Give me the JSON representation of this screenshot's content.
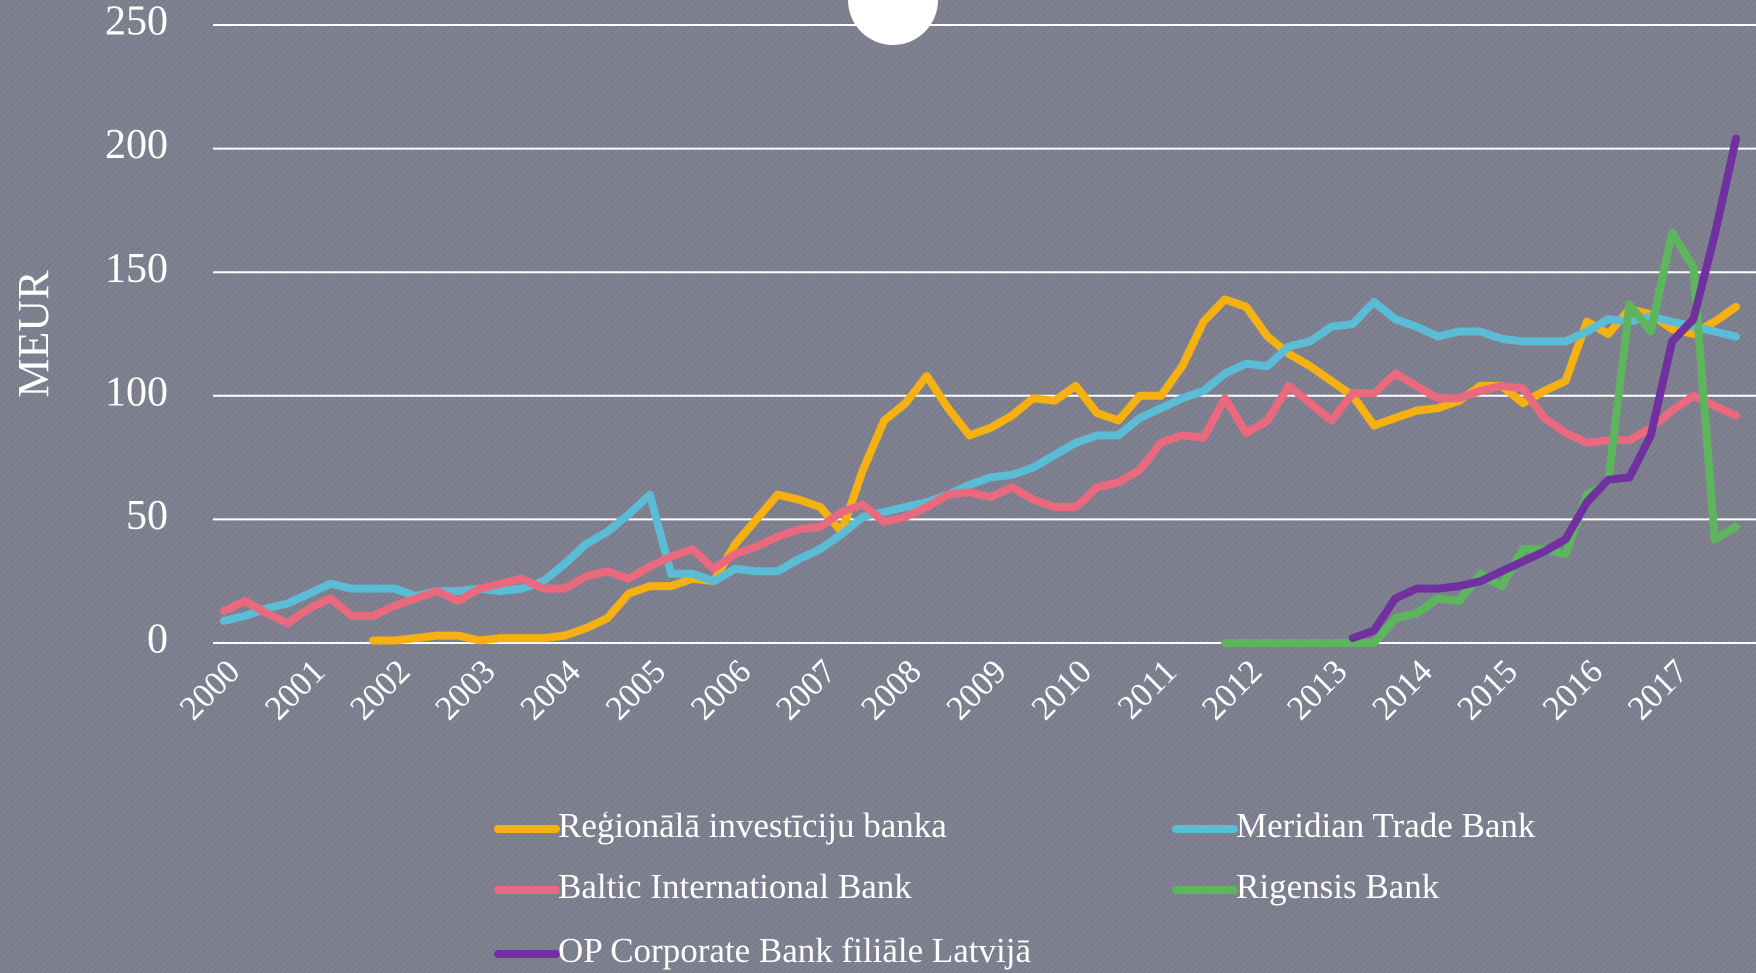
{
  "chart_data": {
    "type": "line",
    "y_label": "MEUR",
    "ylim": [
      0,
      250
    ],
    "yticks": [
      0,
      50,
      100,
      150,
      200,
      250
    ],
    "grid": true,
    "categories": [
      "2000",
      null,
      null,
      null,
      "2001",
      null,
      null,
      null,
      "2002",
      null,
      null,
      null,
      "2003",
      null,
      null,
      null,
      "2004",
      null,
      null,
      null,
      "2005",
      null,
      null,
      null,
      "2006",
      null,
      null,
      null,
      "2007",
      null,
      null,
      null,
      "2008",
      null,
      null,
      null,
      "2009",
      null,
      null,
      null,
      "2010",
      null,
      null,
      null,
      "2011",
      null,
      null,
      null,
      "2012",
      null,
      null,
      null,
      "2013",
      null,
      null,
      null,
      "2014",
      null,
      null,
      null,
      "2015",
      null,
      null,
      null,
      "2016",
      null,
      null,
      null,
      "2017",
      null,
      null,
      null
    ],
    "series": [
      {
        "name": "Reģionālā investīciju banka",
        "color": "#f5b112",
        "values": [
          null,
          null,
          null,
          null,
          null,
          null,
          null,
          1,
          1,
          2,
          3,
          3,
          1,
          2,
          2,
          2,
          3,
          6,
          10,
          20,
          23,
          23,
          26,
          25,
          40,
          50,
          60,
          58,
          55,
          45,
          70,
          90,
          97,
          108,
          95,
          84,
          87,
          92,
          99,
          98,
          104,
          93,
          90,
          100,
          100,
          112,
          130,
          139,
          136,
          124,
          117,
          112,
          106,
          100,
          88,
          91,
          94,
          95,
          98,
          104,
          104,
          97,
          102,
          106,
          130,
          125,
          135,
          133,
          127,
          125,
          130,
          136
        ]
      },
      {
        "name": "Meridian Trade Bank",
        "color": "#5bbcd6",
        "values": [
          9,
          11,
          14,
          16,
          20,
          24,
          22,
          22,
          22,
          19,
          21,
          21,
          22,
          21,
          22,
          25,
          32,
          40,
          45,
          52,
          60,
          28,
          28,
          25,
          30,
          29,
          29,
          34,
          38,
          44,
          51,
          53,
          55,
          57,
          60,
          64,
          67,
          68,
          71,
          76,
          81,
          84,
          84,
          91,
          95,
          99,
          102,
          109,
          113,
          112,
          120,
          122,
          128,
          129,
          138,
          131,
          128,
          124,
          126,
          126,
          123,
          122,
          122,
          122,
          126,
          131,
          130,
          132,
          130,
          128,
          126,
          124
        ]
      },
      {
        "name": "Baltic International Bank",
        "color": "#e9697f",
        "values": [
          13,
          17,
          12,
          8,
          14,
          18,
          11,
          11,
          15,
          18,
          21,
          17,
          22,
          24,
          26,
          22,
          22,
          27,
          29,
          26,
          31,
          35,
          38,
          30,
          36,
          39,
          43,
          46,
          47,
          53,
          56,
          49,
          51,
          55,
          60,
          61,
          59,
          63,
          58,
          55,
          55,
          63,
          65,
          70,
          81,
          84,
          83,
          99,
          85,
          90,
          104,
          97,
          90,
          101,
          101,
          109,
          104,
          99,
          99,
          102,
          104,
          103,
          91,
          85,
          81,
          82,
          82,
          87,
          94,
          100,
          96,
          92
        ]
      },
      {
        "name": "Rigensis Bank",
        "color": "#5db65e",
        "values": [
          null,
          null,
          null,
          null,
          null,
          null,
          null,
          null,
          null,
          null,
          null,
          null,
          null,
          null,
          null,
          null,
          null,
          null,
          null,
          null,
          null,
          null,
          null,
          null,
          null,
          null,
          null,
          null,
          null,
          null,
          null,
          null,
          null,
          null,
          null,
          null,
          null,
          null,
          null,
          null,
          null,
          null,
          null,
          null,
          null,
          null,
          null,
          0,
          0,
          0,
          0,
          0,
          0,
          0,
          0,
          10,
          12,
          18,
          17,
          28,
          23,
          38,
          38,
          36,
          60,
          65,
          137,
          126,
          166,
          152,
          42,
          47
        ]
      },
      {
        "name": "OP Corporate Bank filiāle Latvijā",
        "color": "#7030a0",
        "values": [
          null,
          null,
          null,
          null,
          null,
          null,
          null,
          null,
          null,
          null,
          null,
          null,
          null,
          null,
          null,
          null,
          null,
          null,
          null,
          null,
          null,
          null,
          null,
          null,
          null,
          null,
          null,
          null,
          null,
          null,
          null,
          null,
          null,
          null,
          null,
          null,
          null,
          null,
          null,
          null,
          null,
          null,
          null,
          null,
          null,
          null,
          null,
          null,
          null,
          null,
          null,
          null,
          null,
          2,
          5,
          18,
          22,
          22,
          23,
          25,
          29,
          33,
          37,
          42,
          57,
          66,
          67,
          84,
          122,
          131,
          165,
          204
        ]
      }
    ]
  }
}
